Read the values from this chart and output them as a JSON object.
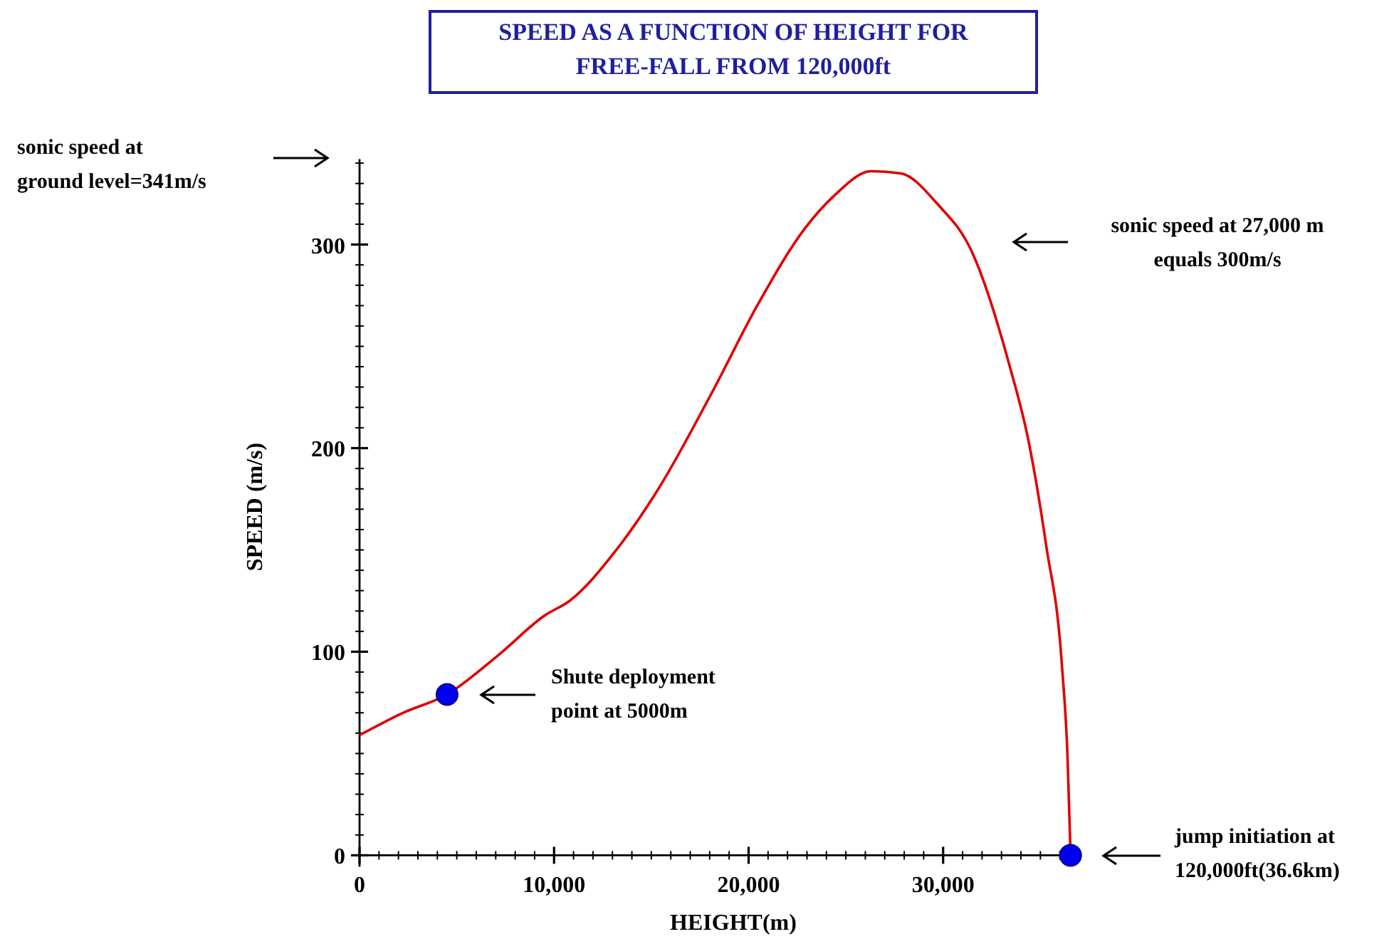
{
  "chart_data": {
    "type": "line",
    "title": "SPEED AS A FUNCTION OF HEIGHT FOR FREE-FALL FROM 120,000ft",
    "xlabel": "HEIGHT(m)",
    "ylabel": "SPEED (m/s)",
    "xlim": [
      0,
      37000
    ],
    "ylim": [
      0,
      342
    ],
    "xticks": [
      0,
      {
        "value": 1000,
        "label": null
      },
      {
        "value": 2000,
        "label": null
      },
      {
        "value": 3000,
        "label": null
      },
      {
        "value": 4000,
        "label": null
      },
      {
        "value": 5000,
        "label": null
      },
      {
        "value": 6000,
        "label": null
      },
      {
        "value": 7000,
        "label": null
      },
      {
        "value": 8000,
        "label": null
      },
      {
        "value": 9000,
        "label": null
      },
      {
        "value": 10000,
        "label": "10,000"
      },
      {
        "value": 11000,
        "label": null
      },
      {
        "value": 12000,
        "label": null
      },
      {
        "value": 13000,
        "label": null
      },
      {
        "value": 14000,
        "label": null
      },
      {
        "value": 15000,
        "label": null
      },
      {
        "value": 16000,
        "label": null
      },
      {
        "value": 17000,
        "label": null
      },
      {
        "value": 18000,
        "label": null
      },
      {
        "value": 19000,
        "label": null
      },
      {
        "value": 20000,
        "label": "20,000"
      },
      {
        "value": 21000,
        "label": null
      },
      {
        "value": 22000,
        "label": null
      },
      {
        "value": 23000,
        "label": null
      },
      {
        "value": 24000,
        "label": null
      },
      {
        "value": 25000,
        "label": null
      },
      {
        "value": 26000,
        "label": null
      },
      {
        "value": 27000,
        "label": null
      },
      {
        "value": 28000,
        "label": null
      },
      {
        "value": 29000,
        "label": null
      },
      {
        "value": 30000,
        "label": "30,000"
      },
      {
        "value": 31000,
        "label": null
      },
      {
        "value": 32000,
        "label": null
      },
      {
        "value": 33000,
        "label": null
      },
      {
        "value": 34000,
        "label": null
      },
      {
        "value": 35000,
        "label": null
      },
      {
        "value": 36000,
        "label": null
      }
    ],
    "yticks": [
      0,
      {
        "value": 10,
        "label": null
      },
      {
        "value": 20,
        "label": null
      },
      {
        "value": 30,
        "label": null
      },
      {
        "value": 40,
        "label": null
      },
      {
        "value": 50,
        "label": null
      },
      {
        "value": 60,
        "label": null
      },
      {
        "value": 70,
        "label": null
      },
      {
        "value": 80,
        "label": null
      },
      {
        "value": 90,
        "label": null
      },
      100,
      {
        "value": 110,
        "label": null
      },
      {
        "value": 120,
        "label": null
      },
      {
        "value": 130,
        "label": null
      },
      {
        "value": 140,
        "label": null
      },
      {
        "value": 150,
        "label": null
      },
      {
        "value": 160,
        "label": null
      },
      {
        "value": 170,
        "label": null
      },
      {
        "value": 180,
        "label": null
      },
      {
        "value": 190,
        "label": null
      },
      200,
      {
        "value": 210,
        "label": null
      },
      {
        "value": 220,
        "label": null
      },
      {
        "value": 230,
        "label": null
      },
      {
        "value": 240,
        "label": null
      },
      {
        "value": 250,
        "label": null
      },
      {
        "value": 260,
        "label": null
      },
      {
        "value": 270,
        "label": null
      },
      {
        "value": 280,
        "label": null
      },
      {
        "value": 290,
        "label": null
      },
      300,
      {
        "value": 310,
        "label": null
      },
      {
        "value": 320,
        "label": null
      },
      {
        "value": 330,
        "label": null
      },
      {
        "value": 340,
        "label": null
      }
    ],
    "grid": false,
    "series": [
      {
        "color": "#e00000",
        "marker": "none",
        "x": [
          0,
          2250,
          4500,
          7100,
          9550,
          10800,
          13200,
          15300,
          18100,
          20500,
          22900,
          24400,
          26300,
          27800,
          29700,
          31500,
          33400,
          34400,
          35300,
          36100,
          36400,
          36550
        ],
        "values": [
          59,
          70,
          79,
          98,
          118,
          125,
          150,
          179,
          227,
          271,
          308,
          324,
          336,
          335,
          320,
          296,
          241,
          203,
          152,
          94,
          47,
          0
        ]
      },
      {
        "type": "scatter",
        "color": "#0000ee",
        "marker": "circle",
        "x": [
          4500,
          36550
        ],
        "values": [
          79,
          0
        ]
      }
    ],
    "annotations": [
      "sonic speed at ground level=341m/s",
      "sonic speed at 27,000 m equals 300m/s",
      "Shute deployment point at 5000m",
      "jump initiation at 120,000ft(36.6km)"
    ]
  }
}
